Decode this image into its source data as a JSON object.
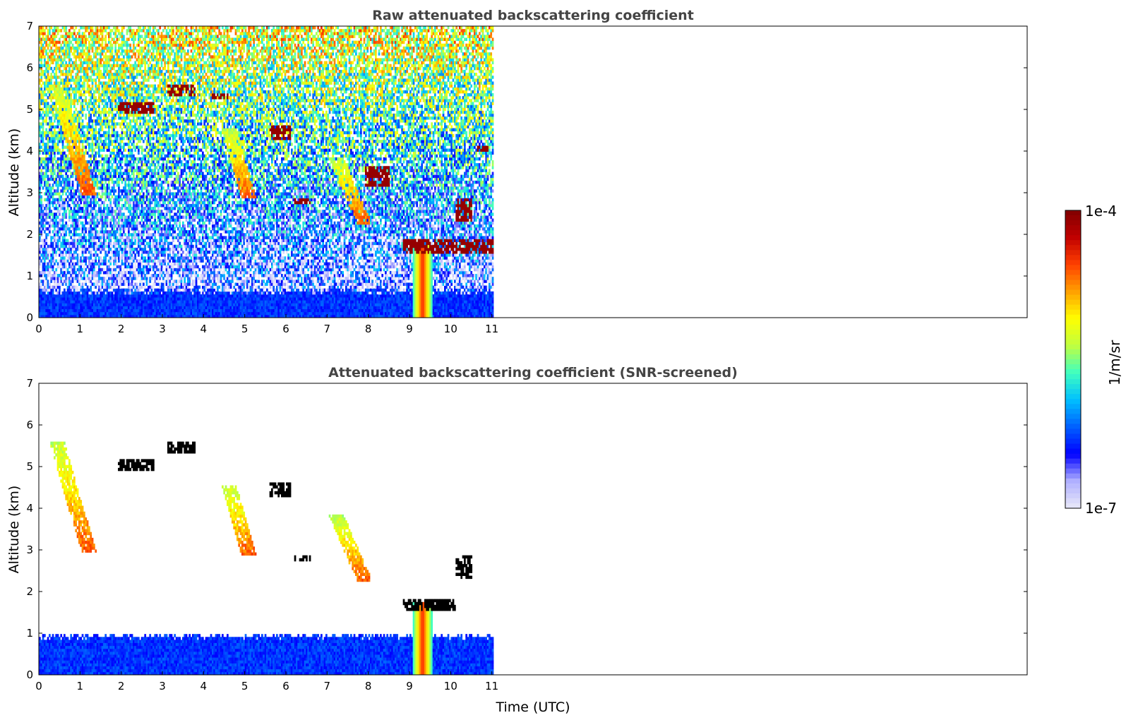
{
  "chart_data": [
    {
      "type": "heatmap",
      "title": "Raw attenuated backscattering coefficient",
      "xlabel": "",
      "ylabel": "Altitude (km)",
      "xlim": [
        0,
        24
      ],
      "ylim": [
        0,
        7
      ],
      "xticks": [
        "0",
        "1",
        "2",
        "3",
        "4",
        "5",
        "6",
        "7",
        "8",
        "9",
        "10",
        "11"
      ],
      "yticks": [
        "0",
        "1",
        "2",
        "3",
        "4",
        "5",
        "6",
        "7"
      ],
      "data_end_time": 11,
      "screened": false,
      "features": [
        {
          "kind": "boundary_layer",
          "x": [
            0,
            11
          ],
          "top_km": 0.6
        },
        {
          "kind": "precip_column",
          "x": [
            9.05,
            9.55
          ],
          "y": [
            0,
            1.7
          ]
        },
        {
          "kind": "cloud_layer",
          "x": [
            8.8,
            11
          ],
          "y": [
            1.5,
            1.85
          ]
        },
        {
          "kind": "cloud",
          "x": [
            1.9,
            2.8
          ],
          "y": [
            4.9,
            5.15
          ]
        },
        {
          "kind": "cloud",
          "x": [
            3.1,
            3.8
          ],
          "y": [
            5.3,
            5.6
          ]
        },
        {
          "kind": "cloud",
          "x": [
            4.2,
            4.6
          ],
          "y": [
            5.2,
            5.35
          ]
        },
        {
          "kind": "cloud",
          "x": [
            5.6,
            6.1
          ],
          "y": [
            4.2,
            4.6
          ]
        },
        {
          "kind": "cloud",
          "x": [
            6.2,
            6.6
          ],
          "y": [
            2.7,
            2.85
          ]
        },
        {
          "kind": "cloud",
          "x": [
            7.9,
            8.5
          ],
          "y": [
            3.1,
            3.6
          ]
        },
        {
          "kind": "cloud",
          "x": [
            10.1,
            10.5
          ],
          "y": [
            2.3,
            2.85
          ]
        },
        {
          "kind": "cloud",
          "x": [
            10.6,
            10.9
          ],
          "y": [
            3.95,
            4.1
          ]
        },
        {
          "kind": "fallstreak",
          "x": [
            0.4,
            1.2
          ],
          "y": [
            2.9,
            5.6
          ]
        },
        {
          "kind": "fallstreak",
          "x": [
            4.6,
            5.1
          ],
          "y": [
            2.8,
            4.5
          ]
        },
        {
          "kind": "fallstreak",
          "x": [
            7.2,
            7.9
          ],
          "y": [
            2.2,
            3.8
          ]
        }
      ]
    },
    {
      "type": "heatmap",
      "title": "Attenuated backscattering coefficient (SNR-screened)",
      "xlabel": "Time (UTC)",
      "ylabel": "Altitude (km)",
      "xlim": [
        0,
        24
      ],
      "ylim": [
        0,
        7
      ],
      "xticks": [
        "0",
        "1",
        "2",
        "3",
        "4",
        "5",
        "6",
        "7",
        "8",
        "9",
        "10",
        "11"
      ],
      "yticks": [
        "0",
        "1",
        "2",
        "3",
        "4",
        "5",
        "6",
        "7"
      ],
      "data_end_time": 11,
      "screened": true,
      "features": [
        {
          "kind": "boundary_layer",
          "x": [
            0,
            11
          ],
          "top_km": 0.9
        },
        {
          "kind": "precip_column",
          "x": [
            9.05,
            9.55
          ],
          "y": [
            0,
            1.7
          ]
        },
        {
          "kind": "cloud_layer",
          "x": [
            8.8,
            10.1
          ],
          "y": [
            1.5,
            1.8
          ]
        },
        {
          "kind": "cloud",
          "x": [
            1.9,
            2.8
          ],
          "y": [
            4.9,
            5.15
          ]
        },
        {
          "kind": "cloud",
          "x": [
            3.1,
            3.8
          ],
          "y": [
            5.3,
            5.6
          ]
        },
        {
          "kind": "cloud",
          "x": [
            5.6,
            6.1
          ],
          "y": [
            4.2,
            4.6
          ]
        },
        {
          "kind": "cloud",
          "x": [
            6.2,
            6.6
          ],
          "y": [
            2.7,
            2.85
          ]
        },
        {
          "kind": "cloud",
          "x": [
            10.1,
            10.5
          ],
          "y": [
            2.3,
            2.85
          ]
        },
        {
          "kind": "fallstreak",
          "x": [
            0.4,
            1.2
          ],
          "y": [
            2.9,
            5.6
          ]
        },
        {
          "kind": "fallstreak",
          "x": [
            4.6,
            5.1
          ],
          "y": [
            2.8,
            4.5
          ]
        },
        {
          "kind": "fallstreak",
          "x": [
            7.2,
            7.9
          ],
          "y": [
            2.2,
            3.8
          ]
        }
      ]
    }
  ],
  "colorbar": {
    "label": "1/m/sr",
    "max_label": "1e-4",
    "min_label": "1e-7",
    "scale": "log",
    "colormap": [
      "#e8e8f8",
      "#b0b0ff",
      "#0000ff",
      "#0060ff",
      "#00c0ff",
      "#40ffc0",
      "#c0ff40",
      "#ffff00",
      "#ffa000",
      "#ff4000",
      "#c00000",
      "#800000"
    ]
  }
}
